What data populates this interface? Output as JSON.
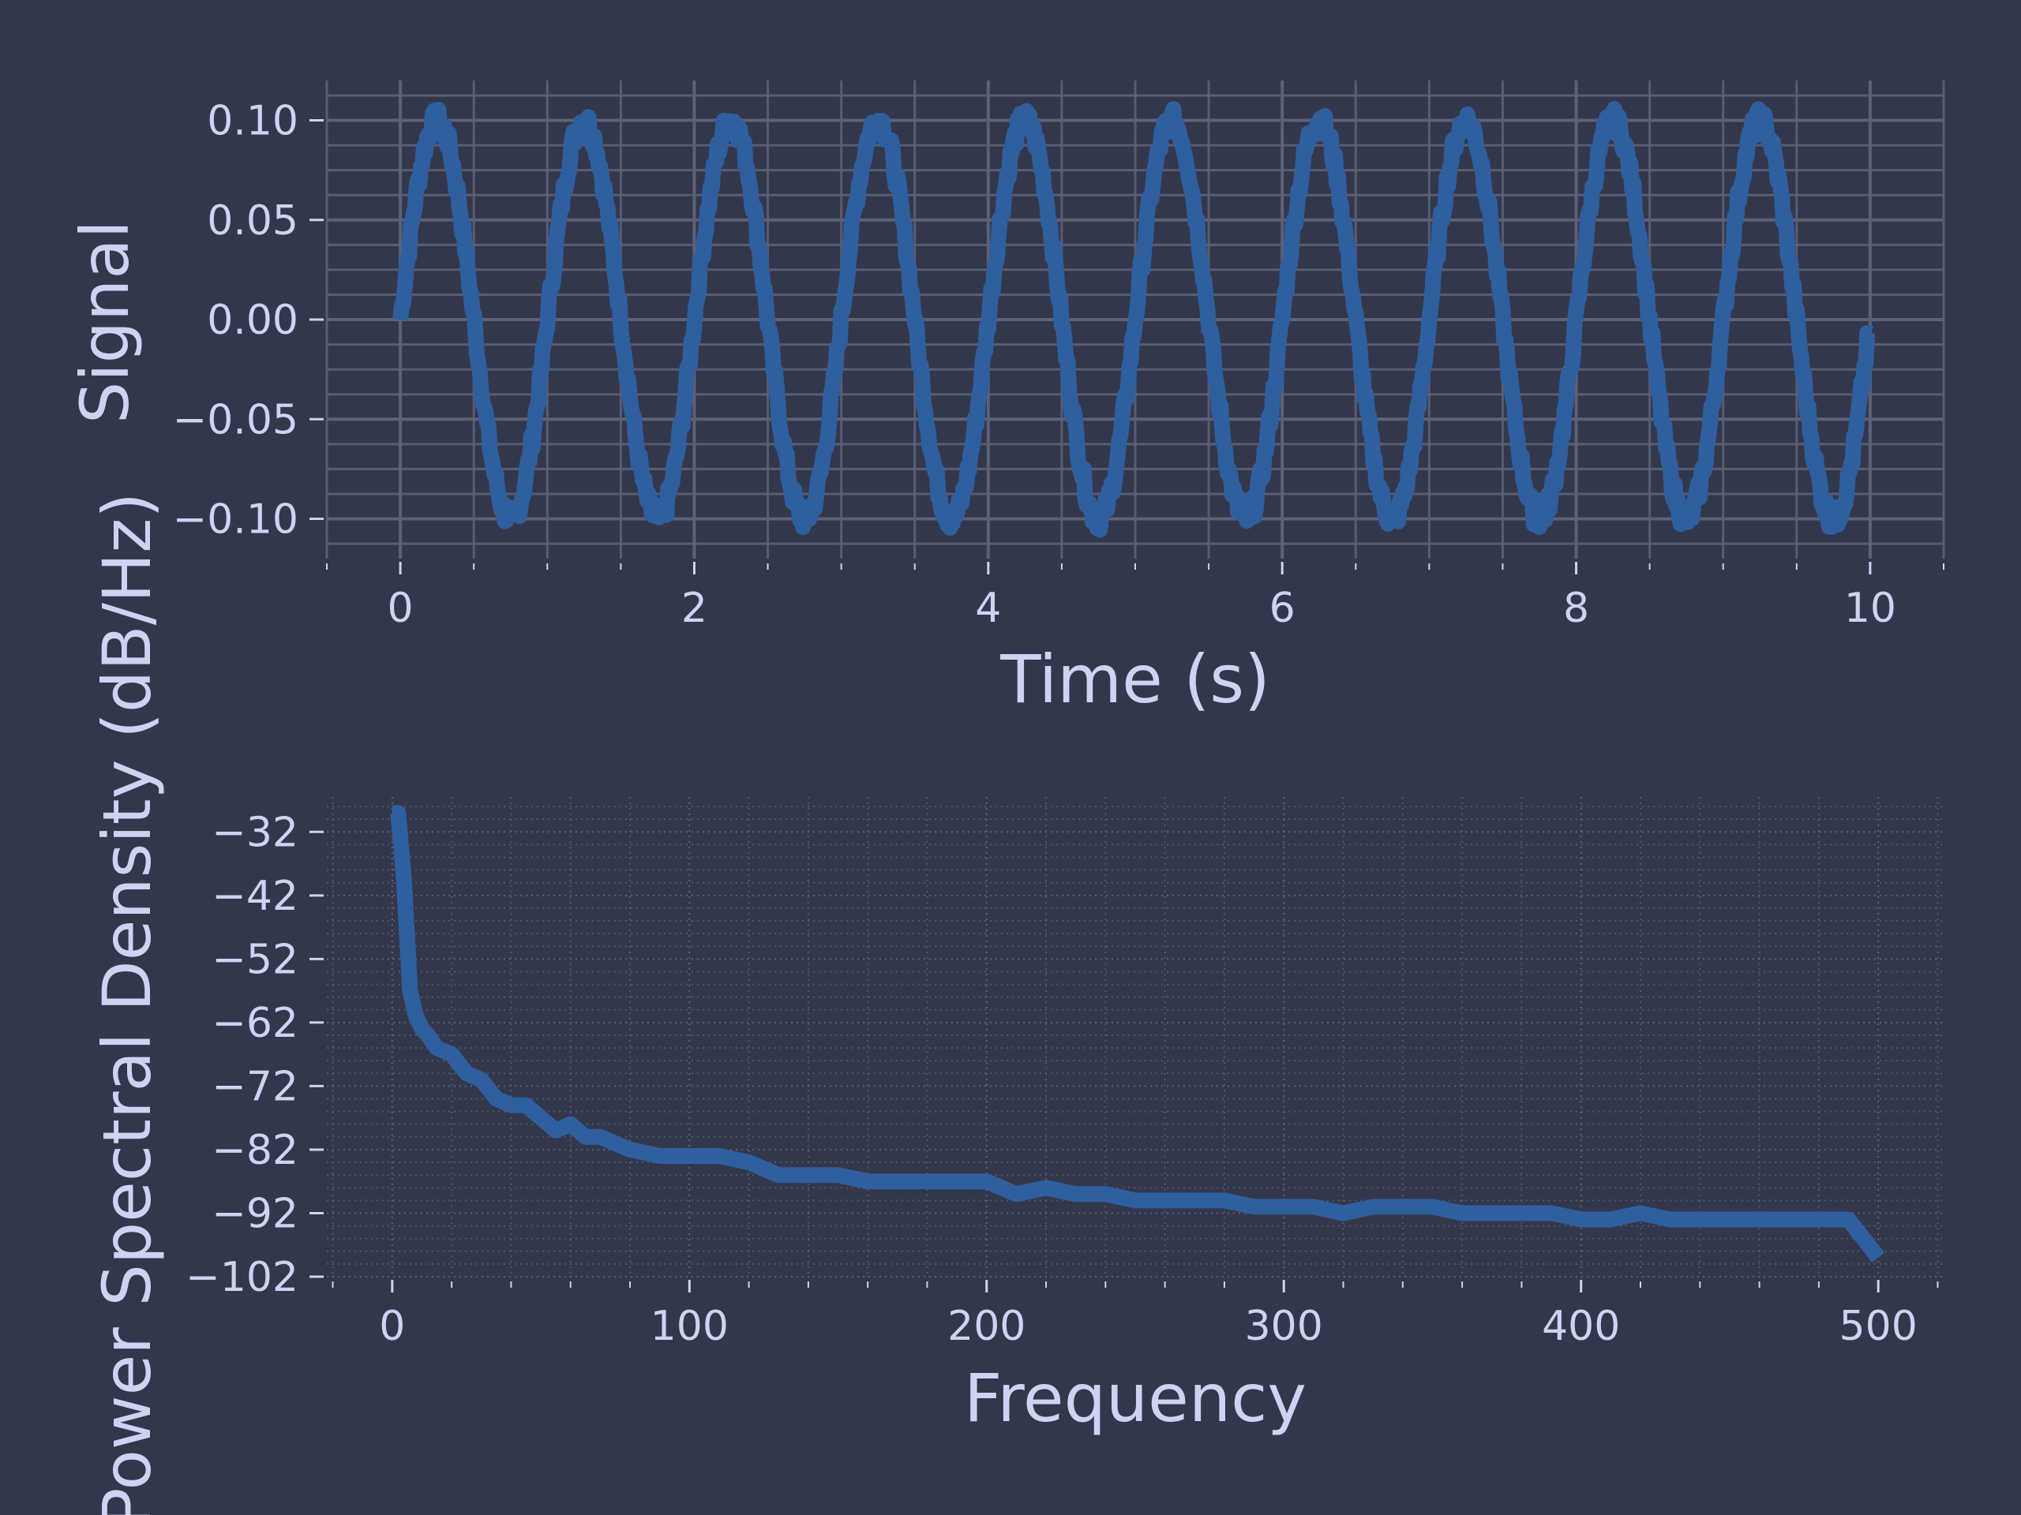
{
  "theme": {
    "background": "#33374b",
    "line_color": "#2f5f9e",
    "grid_color": "#5d6178",
    "text_color": "#cdd3f2"
  },
  "chart_data": [
    {
      "type": "line",
      "panel": "top",
      "title": "",
      "xlabel": "Time (s)",
      "ylabel": "Signal",
      "xlim": [
        -0.5,
        10.5
      ],
      "ylim": [
        -0.12,
        0.12
      ],
      "xticks": [
        0,
        2,
        4,
        6,
        8,
        10
      ],
      "xtick_labels": [
        "0",
        "2",
        "4",
        "6",
        "8",
        "10"
      ],
      "yticks": [
        0.1,
        0.05,
        0.0,
        -0.05,
        -0.1
      ],
      "ytick_labels": [
        "0.10",
        "0.05",
        "0.00",
        "−0.05",
        "−0.10"
      ],
      "grid": "major + minor (solid)",
      "series": [
        {
          "description": "~1 Hz sine wave, amplitude ~0.1, with small noise, t = 0 to 10 s",
          "frequency_hz": 1.0,
          "amplitude": 0.1,
          "phase_deg": 0,
          "t_range": [
            0,
            10
          ],
          "end_value": -0.007
        }
      ]
    },
    {
      "type": "line",
      "panel": "bottom",
      "title": "",
      "xlabel": "Frequency",
      "ylabel": "Power Spectral Density (dB/Hz)",
      "xlim": [
        -22,
        522
      ],
      "ylim": [
        -102,
        -26.5
      ],
      "xticks": [
        0,
        100,
        200,
        300,
        400,
        500
      ],
      "xtick_labels": [
        "0",
        "100",
        "200",
        "300",
        "400",
        "500"
      ],
      "yticks": [
        -32,
        -42,
        -52,
        -62,
        -72,
        -82,
        -92,
        -102
      ],
      "ytick_labels": [
        "−32",
        "−42",
        "−52",
        "−62",
        "−72",
        "−82",
        "−92",
        "−102"
      ],
      "grid": "major + minor (dotted)",
      "series": [
        {
          "description": "Power spectral density (dB/Hz) vs frequency, steep drop at low frequency then slow decline with noise",
          "x": [
            0,
            2,
            4,
            6,
            8,
            10,
            12,
            15,
            20,
            25,
            30,
            35,
            40,
            45,
            50,
            55,
            60,
            65,
            70,
            75,
            80,
            90,
            100,
            110,
            120,
            130,
            140,
            150,
            160,
            170,
            180,
            190,
            200,
            210,
            220,
            230,
            240,
            250,
            260,
            270,
            280,
            290,
            300,
            310,
            320,
            330,
            340,
            350,
            360,
            370,
            380,
            390,
            400,
            410,
            420,
            430,
            440,
            450,
            460,
            470,
            480,
            490,
            495,
            500
          ],
          "y": [
            -29,
            -29,
            -40,
            -57,
            -61,
            -63,
            -64,
            -66,
            -67,
            -70,
            -71,
            -74,
            -75,
            -75,
            -77,
            -79,
            -78,
            -80,
            -80,
            -81,
            -82,
            -83,
            -83,
            -83,
            -84,
            -86,
            -86,
            -86,
            -87,
            -87,
            -87,
            -87,
            -87,
            -89,
            -88,
            -89,
            -89,
            -90,
            -90,
            -90,
            -90,
            -91,
            -91,
            -91,
            -92,
            -91,
            -91,
            -91,
            -92,
            -92,
            -92,
            -92,
            -93,
            -93,
            -92,
            -93,
            -93,
            -93,
            -93,
            -93,
            -93,
            -93,
            -96,
            -99
          ]
        }
      ]
    }
  ]
}
